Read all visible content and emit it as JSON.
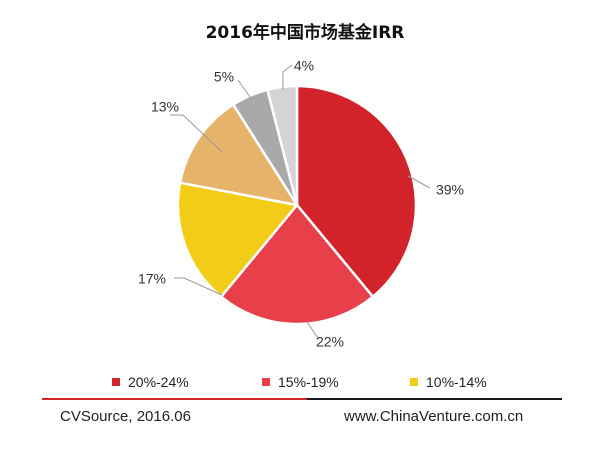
{
  "chart_data": {
    "type": "pie",
    "title": "2016年中国市场基金IRR",
    "categories": [
      "20%-24%",
      "15%-19%",
      "10%-14%",
      "",
      "",
      ""
    ],
    "values": [
      39,
      22,
      17,
      13,
      5,
      4
    ],
    "labels": [
      "39%",
      "22%",
      "17%",
      "13%",
      "5%",
      "4%"
    ],
    "colors": [
      "#d2232a",
      "#e8404a",
      "#f2cc17",
      "#e5b46a",
      "#a9a9a9",
      "#d4d4d4"
    ],
    "legend": [
      {
        "label": "20%-24%",
        "color": "#d2232a"
      },
      {
        "label": "15%-19%",
        "color": "#e8404a"
      },
      {
        "label": "10%-14%",
        "color": "#f2cc17"
      }
    ],
    "legend_position": "bottom"
  },
  "footer": {
    "source": "CVSource, 2016.06",
    "website": "www.ChinaVenture.com.cn",
    "rule_colors": [
      "#d2232a",
      "#1a1a1a"
    ]
  }
}
